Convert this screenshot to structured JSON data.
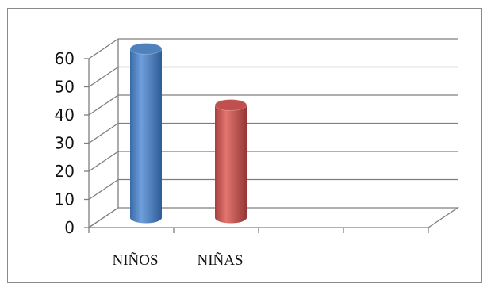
{
  "chart_data": {
    "type": "bar",
    "style": "3d-cylinder",
    "categories": [
      "NIÑOS",
      "NIÑAS"
    ],
    "slots": 4,
    "values": [
      60,
      40
    ],
    "colors": [
      "#4f81bd",
      "#c0504d"
    ],
    "ylim": [
      0,
      60
    ],
    "yticks": [
      0,
      10,
      20,
      30,
      40,
      50,
      60
    ],
    "title": "",
    "xlabel": "",
    "ylabel": "",
    "grid": true,
    "legend": "none"
  }
}
